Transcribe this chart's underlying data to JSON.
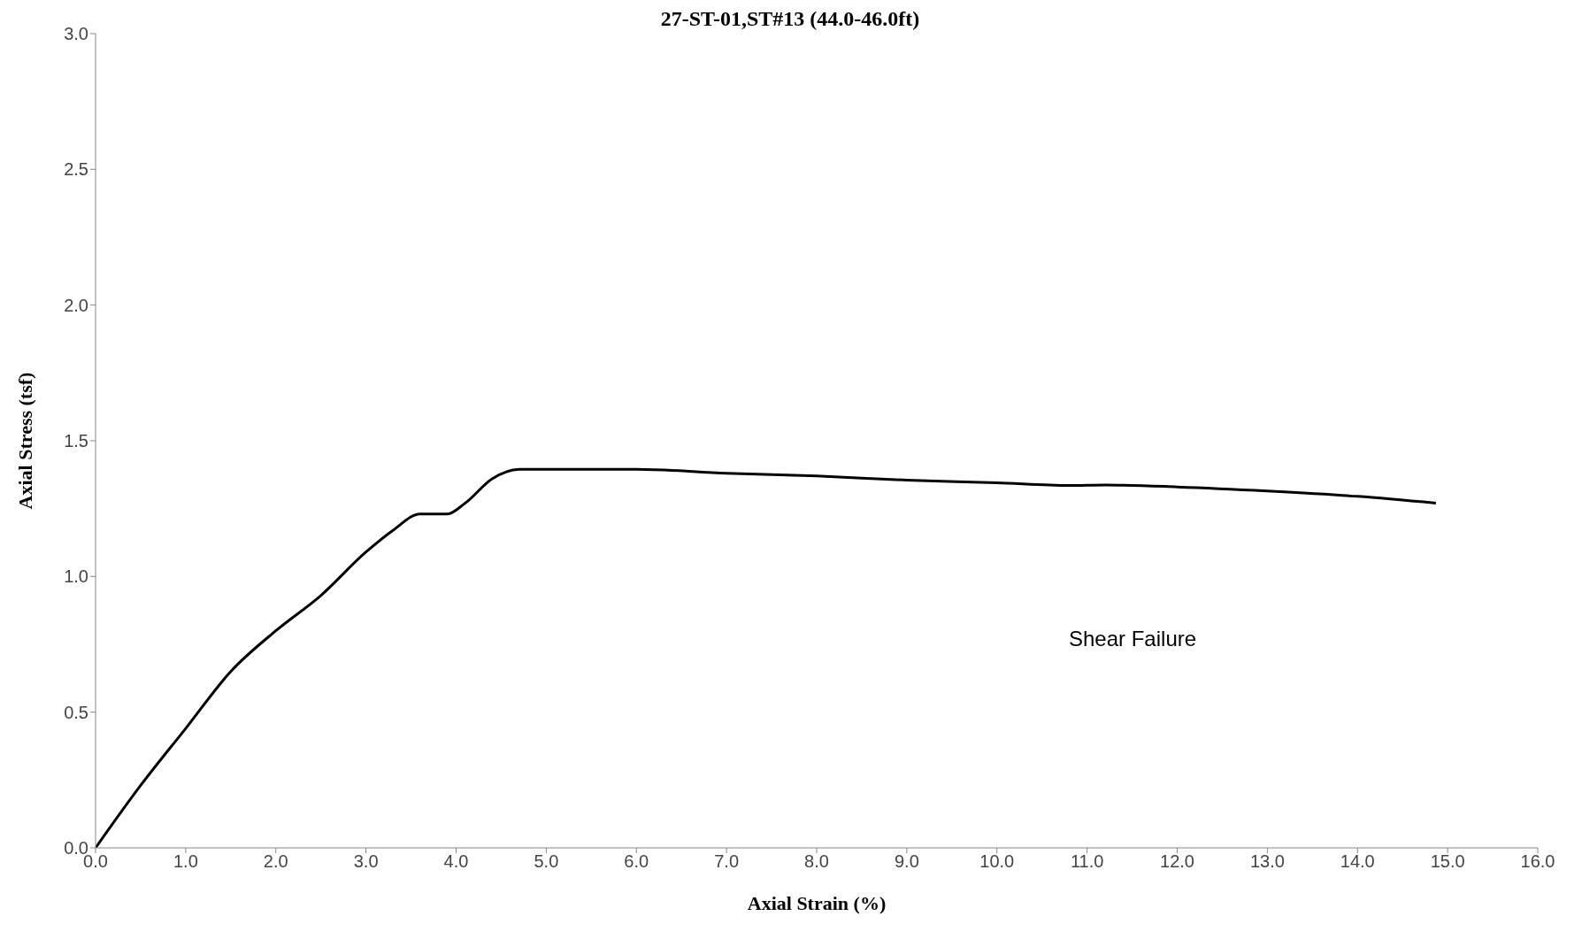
{
  "chart_data": {
    "type": "line",
    "title": "27-ST-01,ST#13 (44.0-46.0ft)",
    "xlabel": "Axial Strain (%)",
    "ylabel": "Axial Stress (tsf)",
    "annotations": [
      "Shear Failure"
    ],
    "series": [
      {
        "color": "#000000",
        "x": [
          0,
          0.5,
          1.0,
          1.5,
          2.0,
          2.5,
          3.0,
          3.3,
          3.6,
          3.9,
          4.1,
          4.4,
          4.7,
          5.0,
          6.0,
          7.0,
          8.0,
          9.0,
          10.0,
          10.8,
          11.2,
          12.0,
          13.0,
          14.0,
          14.87
        ],
        "values": [
          0,
          0.23,
          0.44,
          0.65,
          0.8,
          0.93,
          1.09,
          1.17,
          1.23,
          1.23,
          1.27,
          1.36,
          1.395,
          1.395,
          1.395,
          1.38,
          1.37,
          1.355,
          1.345,
          1.335,
          1.337,
          1.33,
          1.315,
          1.295,
          1.27
        ]
      }
    ],
    "xlim": [
      0,
      16
    ],
    "ylim": [
      0,
      3
    ],
    "xticks": [
      {
        "value": 0,
        "label": "0.0"
      },
      {
        "value": 1,
        "label": "1.0"
      },
      {
        "value": 2,
        "label": "2.0"
      },
      {
        "value": 3,
        "label": "3.0"
      },
      {
        "value": 4,
        "label": "4.0"
      },
      {
        "value": 5,
        "label": "5.0"
      },
      {
        "value": 6,
        "label": "6.0"
      },
      {
        "value": 7,
        "label": "7.0"
      },
      {
        "value": 8,
        "label": "8.0"
      },
      {
        "value": 9,
        "label": "9.0"
      },
      {
        "value": 10,
        "label": "10.0"
      },
      {
        "value": 11,
        "label": "11.0"
      },
      {
        "value": 12,
        "label": "12.0"
      },
      {
        "value": 13,
        "label": "13.0"
      },
      {
        "value": 14,
        "label": "14.0"
      },
      {
        "value": 15,
        "label": "15.0"
      },
      {
        "value": 16,
        "label": "16.0"
      }
    ],
    "yticks": [
      {
        "value": 0,
        "label": "0.0"
      },
      {
        "value": 0.5,
        "label": "0.5"
      },
      {
        "value": 1,
        "label": "1.0"
      },
      {
        "value": 1.5,
        "label": "1.5"
      },
      {
        "value": 2,
        "label": "2.0"
      },
      {
        "value": 2.5,
        "label": "2.5"
      },
      {
        "value": 3,
        "label": "3.0"
      }
    ],
    "grid": false,
    "marker": "none",
    "line_style": "solid"
  }
}
